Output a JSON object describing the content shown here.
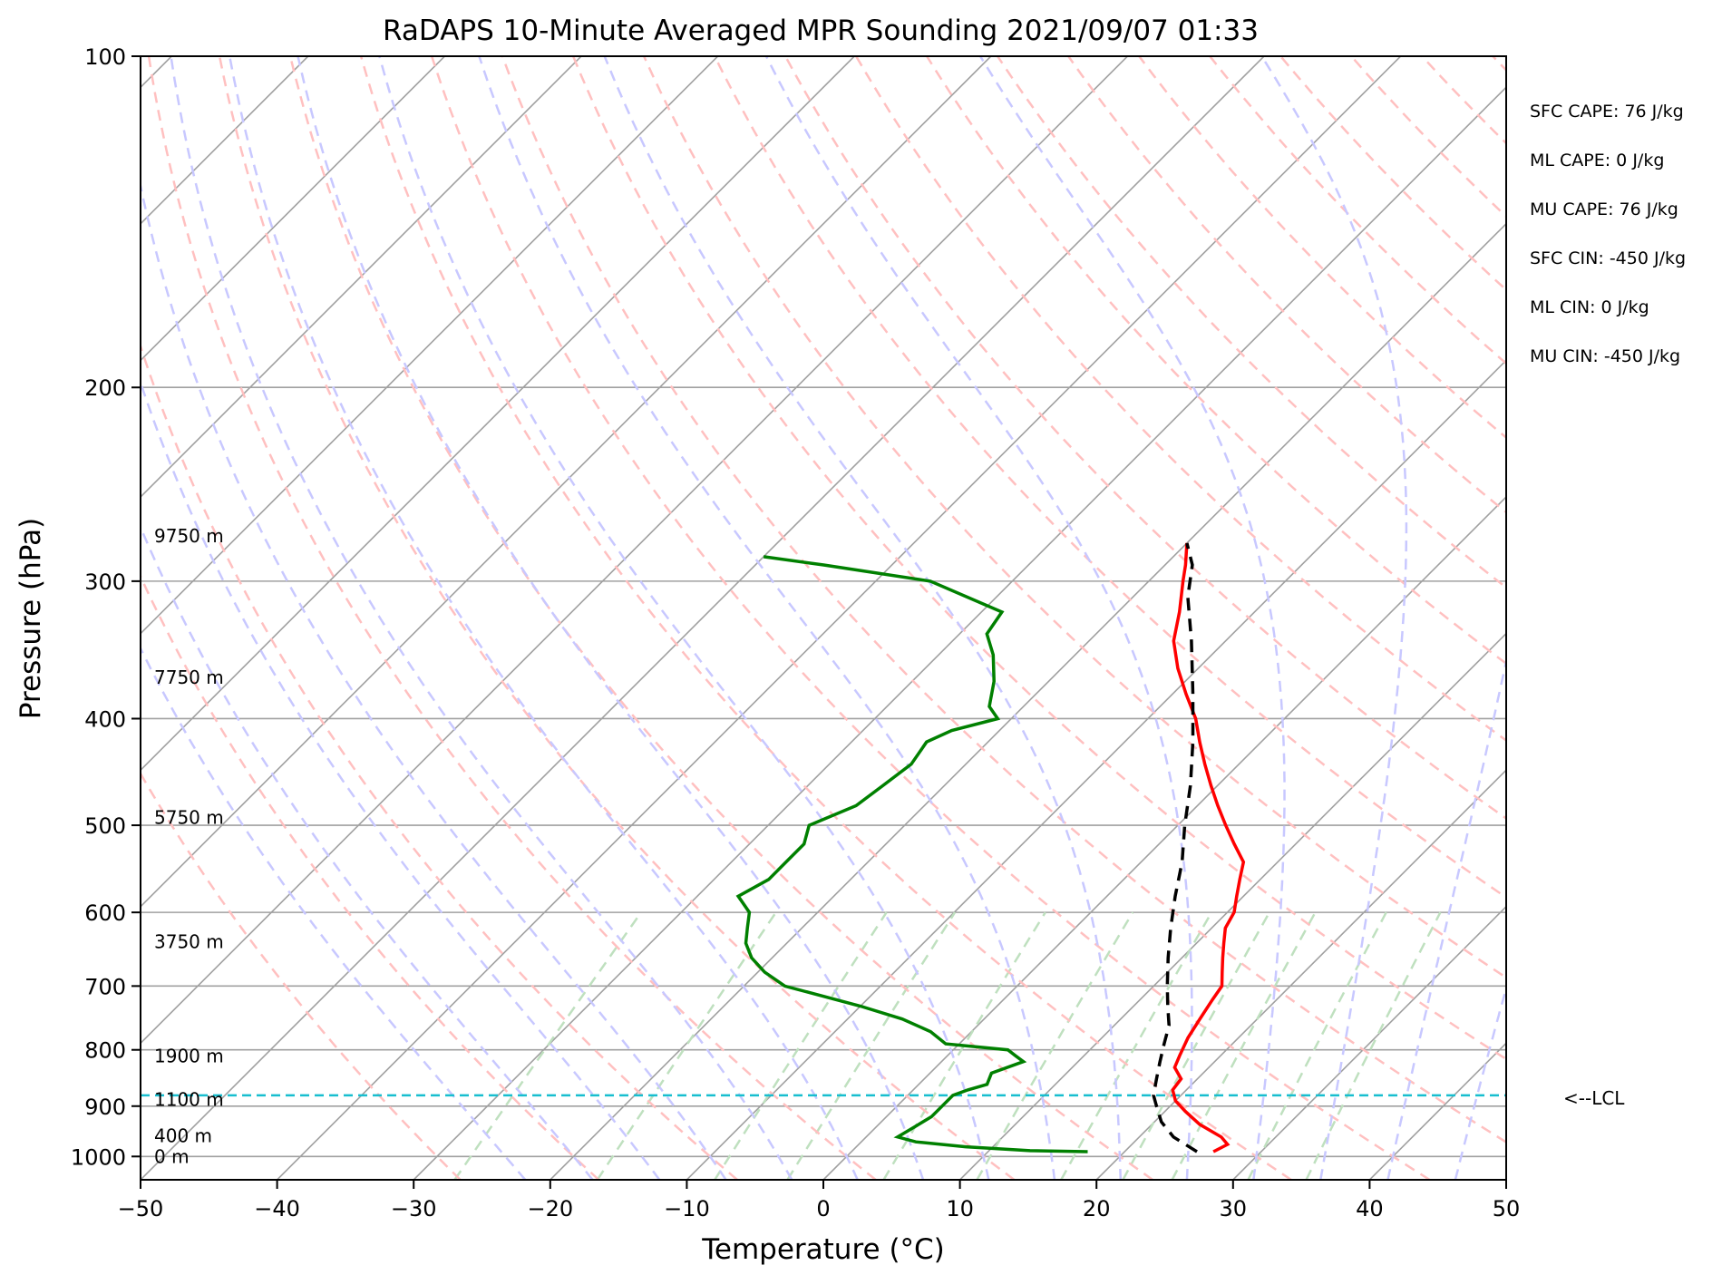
{
  "chart_data": {
    "type": "line",
    "chart_kind": "skew-t log-p",
    "title": "RaDAPS 10-Minute Averaged MPR Sounding 2021/09/07 01:33",
    "xlabel": "Temperature (°C)",
    "ylabel": "Pressure (hPa)",
    "xlim": [
      -50,
      50
    ],
    "ylim_hpa": [
      1050,
      100
    ],
    "y_scale": "log",
    "skew": true,
    "grid": true,
    "x_ticks": [
      {
        "value": -50,
        "label": "−50"
      },
      {
        "value": -40,
        "label": "−40"
      },
      {
        "value": -30,
        "label": "−30"
      },
      {
        "value": -20,
        "label": "−20"
      },
      {
        "value": -10,
        "label": "−10"
      },
      {
        "value": 0,
        "label": "0"
      },
      {
        "value": 10,
        "label": "10"
      },
      {
        "value": 20,
        "label": "20"
      },
      {
        "value": 30,
        "label": "30"
      },
      {
        "value": 40,
        "label": "40"
      },
      {
        "value": 50,
        "label": "50"
      }
    ],
    "y_ticks": [
      {
        "value": 100,
        "label": "100"
      },
      {
        "value": 200,
        "label": "200"
      },
      {
        "value": 300,
        "label": "300"
      },
      {
        "value": 400,
        "label": "400"
      },
      {
        "value": 500,
        "label": "500"
      },
      {
        "value": 600,
        "label": "600"
      },
      {
        "value": 700,
        "label": "700"
      },
      {
        "value": 800,
        "label": "800"
      },
      {
        "value": 900,
        "label": "900"
      },
      {
        "value": 1000,
        "label": "1000"
      }
    ],
    "height_labels": [
      {
        "p": 1000,
        "label": "0 m"
      },
      {
        "p": 958,
        "label": "400 m"
      },
      {
        "p": 888,
        "label": "1100 m"
      },
      {
        "p": 810,
        "label": "1900 m"
      },
      {
        "p": 638,
        "label": "3750 m"
      },
      {
        "p": 492,
        "label": "5750 m"
      },
      {
        "p": 367,
        "label": "7750 m"
      },
      {
        "p": 273,
        "label": "9750 m"
      }
    ],
    "stats": [
      "SFC CAPE: 76 J/kg",
      "ML CAPE: 0 J/kg",
      "MU CAPE: 76 J/kg",
      "SFC CIN: -450 J/kg",
      "ML CIN: 0 J/kg",
      "MU CIN: -450 J/kg"
    ],
    "lcl": {
      "pressure": 880,
      "label": "<--LCL",
      "color": "#17becf"
    },
    "colors": {
      "temperature": "#ff0000",
      "dewpoint": "#008000",
      "parcel": "#000000",
      "isotherm": "#a0a0a0",
      "isobar": "#a0a0a0",
      "dry_adiabat": "#ffc0c0",
      "moist_adiabat": "#c8c8ff",
      "mixing_ratio": "#bfe0bf"
    },
    "series": [
      {
        "name": "temperature",
        "points": [
          [
            990,
            26.5
          ],
          [
            975,
            27.0
          ],
          [
            960,
            26.0
          ],
          [
            935,
            23.5
          ],
          [
            910,
            21.5
          ],
          [
            890,
            20.0
          ],
          [
            870,
            19.0
          ],
          [
            850,
            18.8
          ],
          [
            830,
            17.5
          ],
          [
            810,
            17.0
          ],
          [
            780,
            16.3
          ],
          [
            750,
            15.8
          ],
          [
            720,
            15.3
          ],
          [
            700,
            15.0
          ],
          [
            680,
            14.0
          ],
          [
            660,
            13.0
          ],
          [
            640,
            12.0
          ],
          [
            620,
            11.0
          ],
          [
            600,
            10.5
          ],
          [
            580,
            9.5
          ],
          [
            560,
            8.5
          ],
          [
            540,
            7.5
          ],
          [
            520,
            5.5
          ],
          [
            500,
            3.5
          ],
          [
            480,
            1.5
          ],
          [
            460,
            -0.5
          ],
          [
            440,
            -2.5
          ],
          [
            420,
            -4.5
          ],
          [
            400,
            -6.5
          ],
          [
            380,
            -9.0
          ],
          [
            360,
            -11.5
          ],
          [
            340,
            -13.8
          ],
          [
            320,
            -15.5
          ],
          [
            300,
            -17.5
          ],
          [
            290,
            -18.5
          ],
          [
            277,
            -20.0
          ]
        ]
      },
      {
        "name": "dewpoint",
        "points": [
          [
            990,
            17.3
          ],
          [
            988,
            13.0
          ],
          [
            980,
            8.0
          ],
          [
            970,
            4.0
          ],
          [
            960,
            2.3
          ],
          [
            940,
            2.8
          ],
          [
            920,
            3.3
          ],
          [
            900,
            3.3
          ],
          [
            880,
            3.3
          ],
          [
            870,
            4.0
          ],
          [
            860,
            5.0
          ],
          [
            840,
            4.5
          ],
          [
            820,
            6.0
          ],
          [
            810,
            5.0
          ],
          [
            800,
            4.0
          ],
          [
            790,
            -1.0
          ],
          [
            770,
            -3.0
          ],
          [
            750,
            -6.0
          ],
          [
            730,
            -10.0
          ],
          [
            700,
            -17.0
          ],
          [
            680,
            -19.5
          ],
          [
            660,
            -21.5
          ],
          [
            640,
            -23.0
          ],
          [
            620,
            -24.0
          ],
          [
            600,
            -25.0
          ],
          [
            580,
            -27.0
          ],
          [
            560,
            -26.0
          ],
          [
            540,
            -26.0
          ],
          [
            520,
            -26.0
          ],
          [
            500,
            -27.0
          ],
          [
            480,
            -25.0
          ],
          [
            460,
            -24.5
          ],
          [
            440,
            -24.0
          ],
          [
            420,
            -24.5
          ],
          [
            410,
            -23.5
          ],
          [
            400,
            -21.0
          ],
          [
            390,
            -22.5
          ],
          [
            370,
            -24.0
          ],
          [
            350,
            -26.0
          ],
          [
            335,
            -28.0
          ],
          [
            320,
            -28.5
          ],
          [
            300,
            -36.0
          ],
          [
            290,
            -45.0
          ],
          [
            285,
            -50.0
          ]
        ]
      },
      {
        "name": "parcel",
        "points": [
          [
            990,
            25.3
          ],
          [
            960,
            22.5
          ],
          [
            930,
            20.5
          ],
          [
            900,
            19.0
          ],
          [
            880,
            18.0
          ],
          [
            850,
            17.0
          ],
          [
            820,
            16.0
          ],
          [
            790,
            15.0
          ],
          [
            760,
            14.0
          ],
          [
            730,
            12.5
          ],
          [
            700,
            11.0
          ],
          [
            660,
            9.0
          ],
          [
            620,
            7.0
          ],
          [
            580,
            5.0
          ],
          [
            540,
            3.0
          ],
          [
            500,
            0.5
          ],
          [
            460,
            -2.0
          ],
          [
            420,
            -5.0
          ],
          [
            380,
            -8.5
          ],
          [
            340,
            -12.5
          ],
          [
            310,
            -16.0
          ],
          [
            290,
            -18.0
          ],
          [
            277,
            -20.0
          ]
        ]
      }
    ]
  }
}
